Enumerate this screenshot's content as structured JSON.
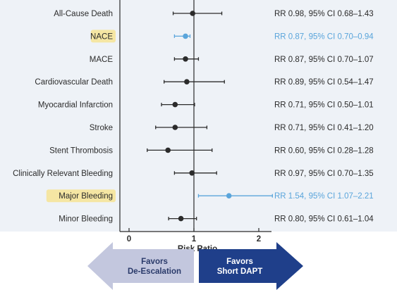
{
  "chart_data": {
    "type": "forest",
    "xlabel": "Risk Ratio",
    "xlim": [
      0,
      2.2
    ],
    "xticks": [
      0,
      1,
      2
    ],
    "reference_line": 1,
    "rows": [
      {
        "label": "All-Cause Death",
        "rr": 0.98,
        "lo": 0.68,
        "hi": 1.43,
        "text": "RR 0.98, 95% CI 0.68–1.43",
        "highlight": false
      },
      {
        "label": "NACE",
        "rr": 0.87,
        "lo": 0.7,
        "hi": 0.94,
        "text": "RR 0.87, 95% CI 0.70–0.94",
        "highlight": true
      },
      {
        "label": "MACE",
        "rr": 0.87,
        "lo": 0.7,
        "hi": 1.07,
        "text": "RR 0.87, 95% CI 0.70–1.07",
        "highlight": false
      },
      {
        "label": "Cardiovascular Death",
        "rr": 0.89,
        "lo": 0.54,
        "hi": 1.47,
        "text": "RR 0.89, 95% CI 0.54–1.47",
        "highlight": false
      },
      {
        "label": "Myocardial Infarction",
        "rr": 0.71,
        "lo": 0.5,
        "hi": 1.01,
        "text": "RR 0.71, 95% CI 0.50–1.01",
        "highlight": false
      },
      {
        "label": "Stroke",
        "rr": 0.71,
        "lo": 0.41,
        "hi": 1.2,
        "text": "RR 0.71, 95% CI 0.41–1.20",
        "highlight": false
      },
      {
        "label": "Stent Thrombosis",
        "rr": 0.6,
        "lo": 0.28,
        "hi": 1.28,
        "text": "RR 0.60, 95% CI 0.28–1.28",
        "highlight": false
      },
      {
        "label": "Clinically Relevant Bleeding",
        "rr": 0.97,
        "lo": 0.7,
        "hi": 1.35,
        "text": "RR 0.97, 95% CI 0.70–1.35",
        "highlight": false
      },
      {
        "label": "Major Bleeding",
        "rr": 1.54,
        "lo": 1.07,
        "hi": 2.21,
        "text": "RR 1.54, 95% CI 1.07–2.21",
        "highlight": true
      },
      {
        "label": "Minor Bleeding",
        "rr": 0.8,
        "lo": 0.61,
        "hi": 1.04,
        "text": "RR 0.80, 95% CI 0.61–1.04",
        "highlight": false
      }
    ],
    "favors_left": [
      "Favors",
      "De-Escalation"
    ],
    "favors_right": [
      "Favors",
      "Short DAPT"
    ]
  },
  "colors": {
    "plot_bg": "#eef2f7",
    "ink": "#2b2b2b",
    "highlight_text": "#5aa5db",
    "highlight_mark": "#5aa5db",
    "label_highlight_bg": "#f5e6a3",
    "arrow_left": "#c3c7de",
    "arrow_left_text": "#2a3a6a",
    "arrow_right": "#1f3f8a",
    "arrow_right_text": "#ffffff"
  }
}
